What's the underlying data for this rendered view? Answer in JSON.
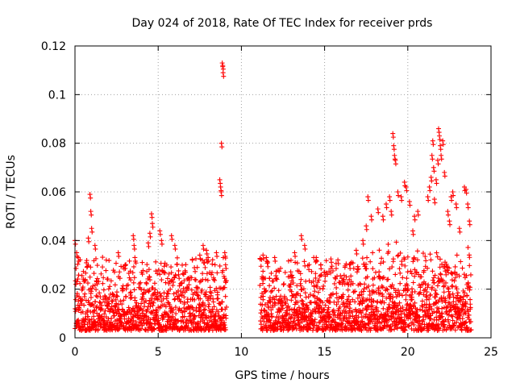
{
  "chart_data": {
    "type": "scatter",
    "title": "Day 024 of 2018, Rate Of TEC Index for receiver prds",
    "xlabel": "GPS time / hours",
    "ylabel": "ROTI / TECUs",
    "xlim": [
      0,
      25
    ],
    "ylim": [
      0,
      0.12
    ],
    "xticks": [
      0,
      5,
      10,
      15,
      20,
      25
    ],
    "xtick_labels": [
      "0",
      "5",
      "10",
      "15",
      "20",
      "25"
    ],
    "yticks": [
      0,
      0.02,
      0.04,
      0.06,
      0.08,
      0.1,
      0.12
    ],
    "ytick_labels": [
      "0",
      "0.02",
      "0.04",
      "0.06",
      "0.08",
      "0.1",
      "0.12"
    ],
    "grid": true,
    "marker": "+",
    "color": "#ff0000",
    "series": [
      {
        "name": "ROTI",
        "points": [
          [
            0.0,
            0.04
          ],
          [
            0.1,
            0.035
          ],
          [
            0.2,
            0.033
          ],
          [
            0.9,
            0.059
          ],
          [
            0.95,
            0.052
          ],
          [
            1.0,
            0.045
          ],
          [
            0.8,
            0.041
          ],
          [
            1.2,
            0.038
          ],
          [
            2.6,
            0.035
          ],
          [
            3.5,
            0.042
          ],
          [
            3.55,
            0.038
          ],
          [
            3.6,
            0.033
          ],
          [
            4.5,
            0.043
          ],
          [
            4.4,
            0.039
          ],
          [
            4.6,
            0.051
          ],
          [
            4.65,
            0.047
          ],
          [
            5.1,
            0.044
          ],
          [
            5.2,
            0.04
          ],
          [
            5.8,
            0.042
          ],
          [
            6.0,
            0.038
          ],
          [
            7.5,
            0.034
          ],
          [
            7.7,
            0.038
          ],
          [
            7.9,
            0.036
          ],
          [
            8.0,
            0.033
          ],
          [
            8.5,
            0.035
          ],
          [
            8.7,
            0.065
          ],
          [
            8.75,
            0.062
          ],
          [
            8.78,
            0.06
          ],
          [
            8.8,
            0.08
          ],
          [
            8.85,
            0.113
          ],
          [
            8.88,
            0.112
          ],
          [
            8.9,
            0.109
          ],
          [
            9.0,
            0.035
          ],
          [
            9.05,
            0.03
          ],
          [
            11.3,
            0.034
          ],
          [
            11.5,
            0.033
          ],
          [
            12.0,
            0.033
          ],
          [
            13.2,
            0.035
          ],
          [
            13.6,
            0.042
          ],
          [
            13.8,
            0.038
          ],
          [
            14.5,
            0.033
          ],
          [
            15.8,
            0.032
          ],
          [
            16.5,
            0.03
          ],
          [
            16.9,
            0.036
          ],
          [
            17.3,
            0.04
          ],
          [
            17.5,
            0.046
          ],
          [
            17.6,
            0.058
          ],
          [
            17.8,
            0.05
          ],
          [
            18.2,
            0.053
          ],
          [
            18.5,
            0.05
          ],
          [
            18.7,
            0.055
          ],
          [
            18.9,
            0.058
          ],
          [
            19.0,
            0.052
          ],
          [
            19.1,
            0.084
          ],
          [
            19.15,
            0.079
          ],
          [
            19.2,
            0.075
          ],
          [
            19.25,
            0.073
          ],
          [
            19.4,
            0.06
          ],
          [
            19.6,
            0.058
          ],
          [
            19.8,
            0.064
          ],
          [
            19.9,
            0.062
          ],
          [
            20.1,
            0.056
          ],
          [
            20.3,
            0.044
          ],
          [
            20.4,
            0.05
          ],
          [
            20.6,
            0.052
          ],
          [
            21.2,
            0.058
          ],
          [
            21.3,
            0.062
          ],
          [
            21.4,
            0.066
          ],
          [
            21.45,
            0.075
          ],
          [
            21.5,
            0.081
          ],
          [
            21.55,
            0.07
          ],
          [
            21.6,
            0.057
          ],
          [
            21.7,
            0.065
          ],
          [
            21.8,
            0.073
          ],
          [
            21.85,
            0.086
          ],
          [
            21.9,
            0.083
          ],
          [
            21.95,
            0.079
          ],
          [
            22.0,
            0.075
          ],
          [
            22.1,
            0.081
          ],
          [
            22.2,
            0.068
          ],
          [
            22.4,
            0.052
          ],
          [
            22.5,
            0.048
          ],
          [
            22.6,
            0.058
          ],
          [
            22.7,
            0.06
          ],
          [
            22.9,
            0.055
          ],
          [
            23.1,
            0.045
          ],
          [
            23.4,
            0.062
          ],
          [
            23.5,
            0.061
          ],
          [
            23.6,
            0.055
          ],
          [
            23.7,
            0.048
          ]
        ]
      }
    ],
    "dense_band": {
      "segments": [
        [
          0.0,
          9.1
        ],
        [
          11.1,
          23.8
        ]
      ],
      "typical_range": [
        0.003,
        0.025
      ],
      "peak_spread": 0.033
    }
  }
}
